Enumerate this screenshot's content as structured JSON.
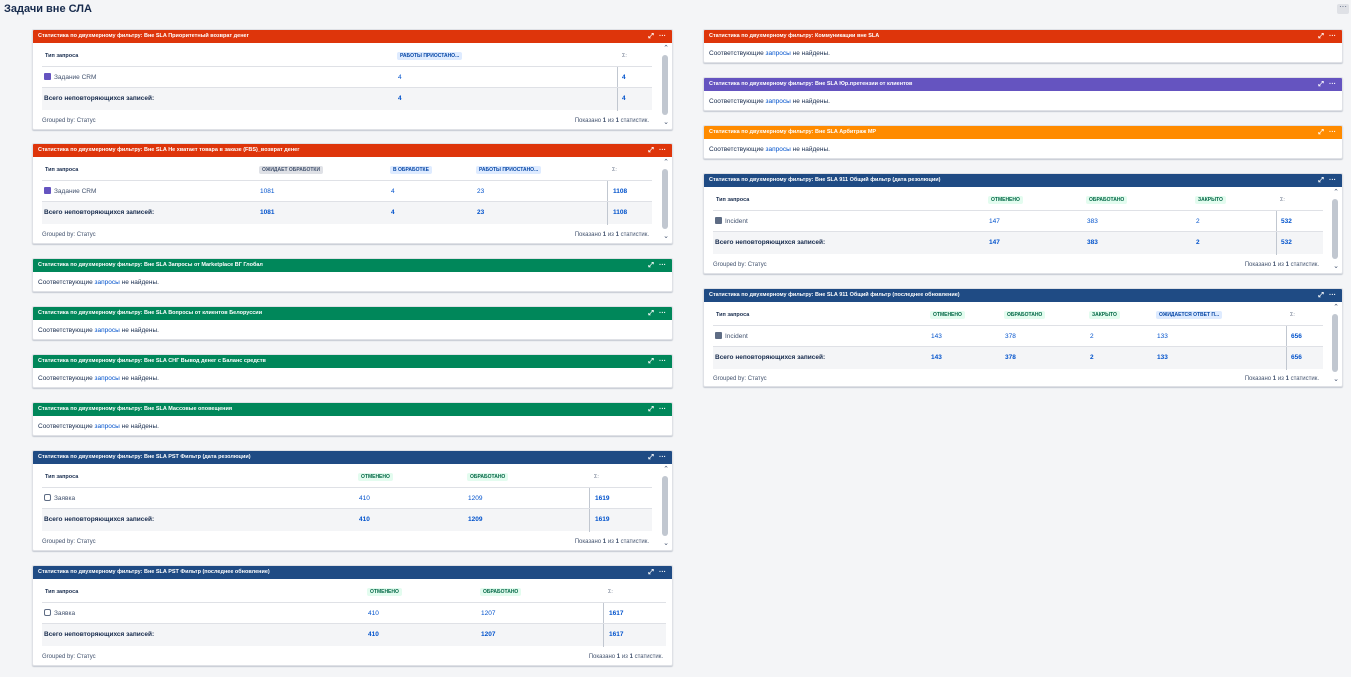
{
  "page": {
    "title": "Задачи вне СЛА"
  },
  "common": {
    "col_type": "Тип запроса",
    "total_label": "Всего неповторяющихся записей:",
    "grouped_by": "Grouped by: Статус",
    "shown_prefix": "Показано",
    "shown_middle": "из",
    "shown_suffix": "статистик.",
    "shown_n": "1",
    "shown_total": "1",
    "empty_before": "Соответствующие",
    "empty_link": "запросы",
    "empty_after": "не найдены.",
    "total_col": "Σ:",
    "expand_icon": "⤢",
    "more_icon": "···"
  },
  "gadgets": {
    "g1": {
      "title": "Статистика по двухмерному фильтру: Вне SLA Приоритетный возврат денег",
      "cols": [
        "РАБОТЫ ПРИОСТАНО..."
      ],
      "row_label": "Задание CRM",
      "row_vals": [
        "4"
      ],
      "row_total": "4",
      "tot_vals": [
        "4"
      ],
      "tot_total": "4"
    },
    "g2": {
      "title": "Статистика по двухмерному фильтру: Вне SLA Не хватает товара в заказе (FBS)_возврат денег",
      "cols": [
        "ОЖИДАЕТ ОБРАБОТКИ",
        "В ОБРАБОТКЕ",
        "РАБОТЫ ПРИОСТАНО..."
      ],
      "row_label": "Задание CRM",
      "row_vals": [
        "1081",
        "4",
        "23"
      ],
      "row_total": "1108",
      "tot_vals": [
        "1081",
        "4",
        "23"
      ],
      "tot_total": "1108"
    },
    "g3": {
      "title": "Статистика по двухмерному фильтру: Вне SLA Запросы от Marketplace ВГ Глобал"
    },
    "g4": {
      "title": "Статистика по двухмерному фильтру: Вне SLA Вопросы от клиентов Белоруссии"
    },
    "g5": {
      "title": "Статистика по двухмерному фильтру: Вне SLA СНГ Вывод денег с Баланс средств"
    },
    "g6": {
      "title": "Статистика по двухмерному фильтру: Вне SLA Массовые оповещения"
    },
    "g7": {
      "title": "Статистика по двухмерному фильтру: Вне SLA PST Фильтр (дата резолюции)",
      "cols": [
        "ОТМЕНЕНО",
        "ОБРАБОТАНО"
      ],
      "row_label": "Заявка",
      "row_vals": [
        "410",
        "1209"
      ],
      "row_total": "1619",
      "tot_vals": [
        "410",
        "1209"
      ],
      "tot_total": "1619"
    },
    "g8": {
      "title": "Статистика по двухмерному фильтру: Вне SLA PST Фильтр (последнее обновление)",
      "cols": [
        "ОТМЕНЕНО",
        "ОБРАБОТАНО"
      ],
      "row_label": "Заявка",
      "row_vals": [
        "410",
        "1207"
      ],
      "row_total": "1617",
      "tot_vals": [
        "410",
        "1207"
      ],
      "tot_total": "1617"
    },
    "r1": {
      "title": "Статистика по двухмерному фильтру: Коммуникации вне SLA"
    },
    "r2": {
      "title": "Статистика по двухмерному фильтру: Вне SLA Юр.претензии от клиентов"
    },
    "r3": {
      "title": "Статистика по двухмерному фильтру: Вне SLA Арбитраж МР"
    },
    "r4": {
      "title": "Статистика по двухмерному фильтру: Вне SLA 911 Общий фильтр (дата резолюции)",
      "cols": [
        "ОТМЕНЕНО",
        "ОБРАБОТАНО",
        "ЗАКРЫТО"
      ],
      "row_label": "Incident",
      "row_vals": [
        "147",
        "383",
        "2"
      ],
      "row_total": "532",
      "tot_vals": [
        "147",
        "383",
        "2"
      ],
      "tot_total": "532"
    },
    "r5": {
      "title": "Статистика по двухмерному фильтру: Вне SLA 911 Общий фильтр (последнее обновление)",
      "cols": [
        "ОТМЕНЕНО",
        "ОБРАБОТАНО",
        "ЗАКРЫТО",
        "ОЖИДАЕТСЯ ОТВЕТ П..."
      ],
      "row_label": "Incident",
      "row_vals": [
        "143",
        "378",
        "2",
        "133"
      ],
      "row_total": "656",
      "tot_vals": [
        "143",
        "378",
        "2",
        "133"
      ],
      "tot_total": "656"
    }
  }
}
